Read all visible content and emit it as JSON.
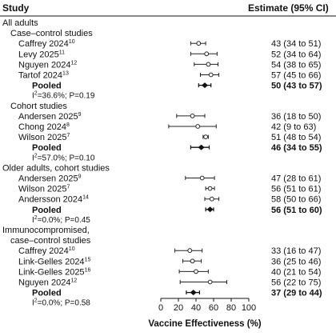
{
  "chart_data": {
    "type": "forest",
    "column_headers": {
      "study": "Study",
      "estimate": "Estimate (95% CI)"
    },
    "xlabel": "Vaccine Effectiveness (%)",
    "xlim": [
      0,
      100
    ],
    "x_ticks": [
      "0",
      "20",
      "40",
      "60",
      "80",
      "100"
    ],
    "groups": [
      {
        "title": "All adults",
        "subgroups": [
          {
            "title": "Case–control studies",
            "rows": [
              {
                "study": "Caffrey 2024",
                "ref": "10",
                "est": 43,
                "lo": 34,
                "hi": 51,
                "text": "43 (34 to 51)"
              },
              {
                "study": "Levy 2025",
                "ref": "11",
                "est": 52,
                "lo": 34,
                "hi": 64,
                "text": "52 (34 to 64)"
              },
              {
                "study": "Nguyen 2024",
                "ref": "12",
                "est": 54,
                "lo": 38,
                "hi": 65,
                "text": "54 (38 to 65)"
              },
              {
                "study": "Tartof 2024",
                "ref": "13",
                "est": 57,
                "lo": 45,
                "hi": 66,
                "text": "57 (45 to 66)"
              }
            ],
            "pooled": {
              "label": "Pooled",
              "est": 50,
              "lo": 43,
              "hi": 57,
              "text": "50 (43 to 57)"
            },
            "heterogeneity": {
              "i2": "36.6%",
              "p": "0.19"
            }
          },
          {
            "title": "Cohort studies",
            "rows": [
              {
                "study": "Andersen 2025",
                "ref": "9",
                "est": 36,
                "lo": 18,
                "hi": 50,
                "text": "36 (18 to 50)"
              },
              {
                "study": "Chong 2024",
                "ref": "8",
                "est": 42,
                "lo": 9,
                "hi": 63,
                "text": "42 (9 to 63)"
              },
              {
                "study": "Wilson 2025",
                "ref": "7",
                "est": 51,
                "lo": 48,
                "hi": 54,
                "text": "51 (48 to 54)"
              }
            ],
            "pooled": {
              "label": "Pooled",
              "est": 46,
              "lo": 34,
              "hi": 55,
              "text": "46 (34 to 55)"
            },
            "heterogeneity": {
              "i2": "57.0%",
              "p": "0.10"
            }
          }
        ]
      },
      {
        "title": "Older adults, cohort studies",
        "subgroups": [
          {
            "title": "",
            "rows": [
              {
                "study": "Andersen 2025",
                "ref": "9",
                "est": 47,
                "lo": 28,
                "hi": 61,
                "text": "47 (28 to 61)"
              },
              {
                "study": "Wilson 2025",
                "ref": "7",
                "est": 56,
                "lo": 51,
                "hi": 61,
                "text": "56 (51 to 61)"
              },
              {
                "study": "Andersson 2024",
                "ref": "14",
                "est": 58,
                "lo": 50,
                "hi": 66,
                "text": "58 (50 to 66)"
              }
            ],
            "pooled": {
              "label": "Pooled",
              "est": 56,
              "lo": 51,
              "hi": 60,
              "text": "56 (51 to 60)"
            },
            "heterogeneity": {
              "i2": "0.0%",
              "p": "0.45"
            }
          }
        ]
      },
      {
        "title": "Immunocompromised,",
        "title_line2": "case–control studies",
        "subgroups": [
          {
            "title": "",
            "rows": [
              {
                "study": "Caffrey 2024",
                "ref": "10",
                "est": 33,
                "lo": 16,
                "hi": 47,
                "text": "33 (16 to 47)"
              },
              {
                "study": "Link-Gelles 2024",
                "ref": "15",
                "est": 36,
                "lo": 25,
                "hi": 46,
                "text": "36 (25 to 46)"
              },
              {
                "study": "Link-Gelles 2025",
                "ref": "16",
                "est": 40,
                "lo": 21,
                "hi": 54,
                "text": "40 (21 to 54)"
              },
              {
                "study": "Nguyen 2024",
                "ref": "12",
                "est": 56,
                "lo": 22,
                "hi": 75,
                "text": "56 (22 to 75)"
              }
            ],
            "pooled": {
              "label": "Pooled",
              "est": 37,
              "lo": 29,
              "hi": 44,
              "text": "37 (29 to 44)"
            },
            "heterogeneity": {
              "i2": "0.0%",
              "p": "0.58"
            }
          }
        ]
      }
    ]
  }
}
